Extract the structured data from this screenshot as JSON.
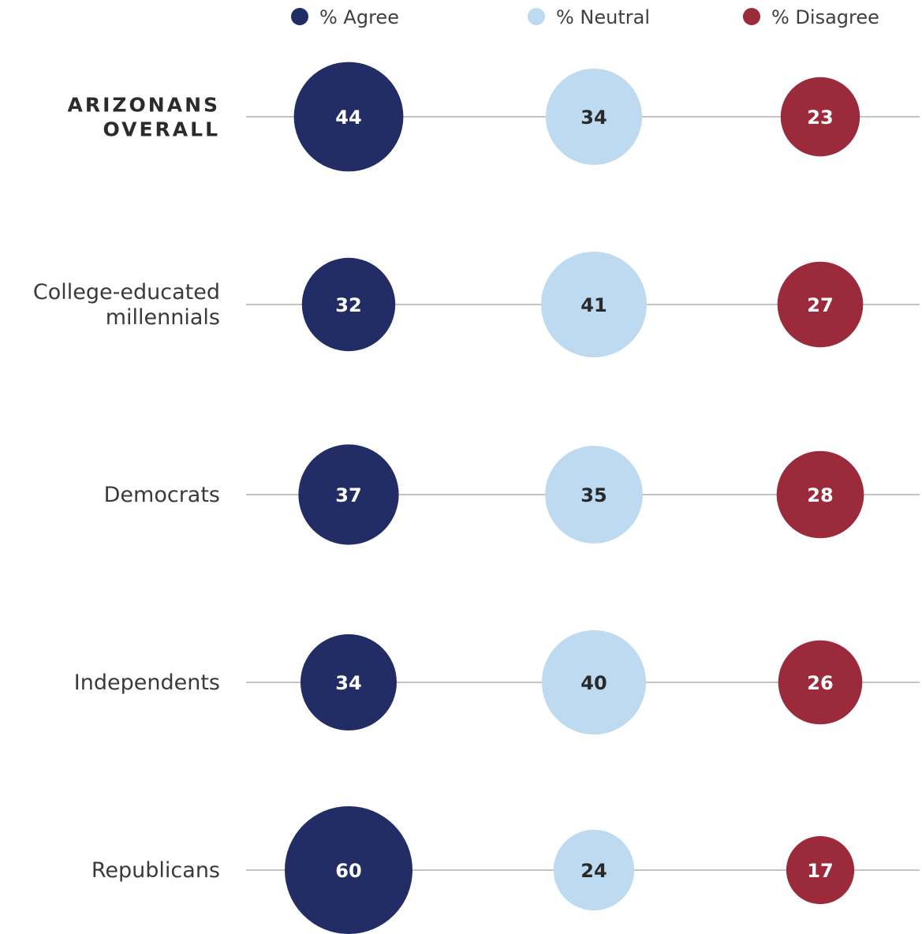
{
  "colors": {
    "agree": "#222d66",
    "neutral": "#bddaf0",
    "disagree": "#9b2a3b",
    "label_on_dark": "#ffffff",
    "label_on_light": "#2a2a2a",
    "row_line": "#c4c4c4"
  },
  "chart_data": {
    "type": "bubble",
    "categories": [
      "ARIZONANS OVERALL",
      "College-educated millennials",
      "Democrats",
      "Independents",
      "Republicans"
    ],
    "category_lines": [
      [
        "ARIZONANS",
        "OVERALL"
      ],
      [
        "College-educated",
        "millennials"
      ],
      [
        "Democrats"
      ],
      [
        "Independents"
      ],
      [
        "Republicans"
      ]
    ],
    "emphasized_category": 0,
    "series": [
      {
        "name": "% Agree",
        "key": "agree",
        "values": [
          44,
          32,
          37,
          34,
          60
        ]
      },
      {
        "name": "% Neutral",
        "key": "neutral",
        "values": [
          34,
          41,
          35,
          40,
          24
        ]
      },
      {
        "name": "% Disagree",
        "key": "disagree",
        "values": [
          23,
          27,
          28,
          26,
          17
        ]
      }
    ],
    "legend_position": "top",
    "bubble_area_proportional_to_value": true
  }
}
